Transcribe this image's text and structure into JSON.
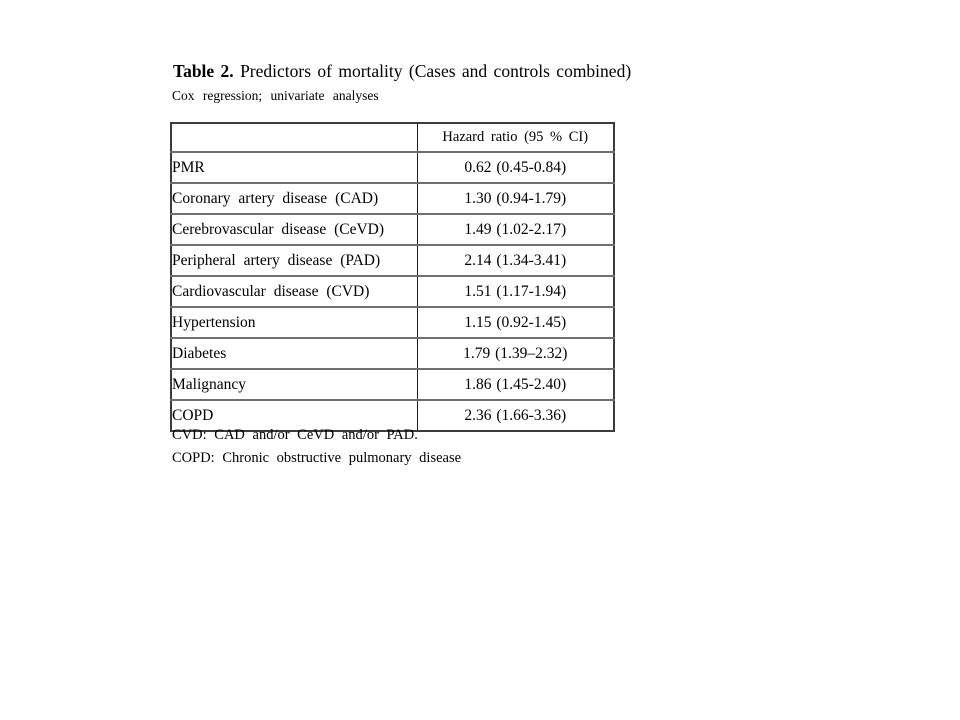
{
  "page": {
    "title_bold": "Table 2.",
    "title_rest": " Predictors of mortality (Cases and controls combined)",
    "subtitle": "Cox regression; univariate analyses"
  },
  "table": {
    "header": {
      "col1": "",
      "col2": "Hazard ratio (95 % CI)"
    },
    "rows": [
      {
        "label": "PMR",
        "value": "0.62 (0.45-0.84)"
      },
      {
        "label": "Coronary artery disease (CAD)",
        "value": "1.30 (0.94-1.79)"
      },
      {
        "label": "Cerebrovascular disease (CeVD)",
        "value": "1.49 (1.02-2.17)"
      },
      {
        "label": "Peripheral artery disease (PAD)",
        "value": "2.14 (1.34-3.41)"
      },
      {
        "label": "Cardiovascular disease (CVD)",
        "value": "1.51 (1.17-1.94)"
      },
      {
        "label": "Hypertension",
        "value": "1.15 (0.92-1.45)"
      },
      {
        "label": "Diabetes",
        "value": "1.79 (1.39–2.32)"
      },
      {
        "label": "Malignancy",
        "value": "1.86 (1.45-2.40)"
      },
      {
        "label": "COPD",
        "value": "2.36 (1.66-3.36)"
      }
    ]
  },
  "footnotes": {
    "line1": "CVD: CAD and/or CeVD and/or PAD.",
    "line2": "COPD: Chronic obstructive pulmonary disease"
  }
}
